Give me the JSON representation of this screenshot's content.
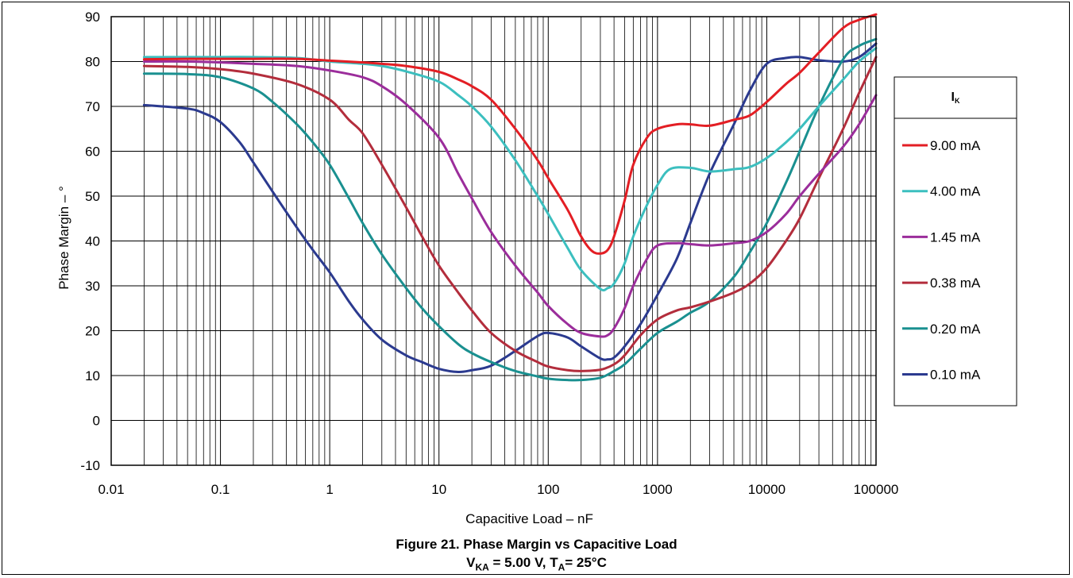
{
  "figure": {
    "title": "Figure 21. Phase Margin vs Capacitive Load",
    "subtitle": {
      "v_symbol": "V",
      "v_sub": "KA",
      "v_rest": " = 5.00 V, T",
      "t_sub": "A",
      "t_rest": "= 25°C"
    }
  },
  "chart_data": {
    "type": "line",
    "xlabel": "Capacitive Load – nF",
    "ylabel": "Phase Margin – °",
    "xscale": "log",
    "xlim": [
      0.01,
      100000
    ],
    "ylim": [
      -10,
      90
    ],
    "x_tick_labels": [
      "0.01",
      "0.1",
      "1",
      "10",
      "100",
      "1000",
      "10000",
      "100000"
    ],
    "x_tick_values": [
      0.01,
      0.1,
      1,
      10,
      100,
      1000,
      10000,
      100000
    ],
    "y_ticks": [
      -10,
      0,
      10,
      20,
      30,
      40,
      50,
      60,
      70,
      80,
      90
    ],
    "grid": true,
    "legend": {
      "title": "I",
      "title_sub": "K",
      "placement": "right"
    },
    "series": [
      {
        "name": "9.00 mA",
        "color": "#e31e24",
        "points": [
          [
            0.02,
            80.5
          ],
          [
            0.05,
            80.6
          ],
          [
            0.1,
            80.6
          ],
          [
            0.2,
            80.6
          ],
          [
            0.5,
            80.6
          ],
          [
            1,
            80.2
          ],
          [
            2,
            79.8
          ],
          [
            3,
            79.5
          ],
          [
            5,
            79
          ],
          [
            10,
            77.7
          ],
          [
            15,
            76
          ],
          [
            20,
            74.5
          ],
          [
            30,
            71.5
          ],
          [
            50,
            65
          ],
          [
            80,
            58
          ],
          [
            100,
            54
          ],
          [
            150,
            47
          ],
          [
            200,
            41
          ],
          [
            250,
            37.8
          ],
          [
            300,
            37.2
          ],
          [
            350,
            38
          ],
          [
            400,
            41
          ],
          [
            500,
            49
          ],
          [
            600,
            57
          ],
          [
            800,
            63
          ],
          [
            1000,
            65
          ],
          [
            1500,
            66
          ],
          [
            2000,
            66
          ],
          [
            3000,
            65.7
          ],
          [
            5000,
            67
          ],
          [
            7000,
            68
          ],
          [
            10000,
            71
          ],
          [
            15000,
            75
          ],
          [
            20000,
            77.5
          ],
          [
            30000,
            82
          ],
          [
            50000,
            87.5
          ],
          [
            70000,
            89.3
          ],
          [
            100000,
            90.5
          ]
        ]
      },
      {
        "name": "4.00 mA",
        "color": "#3cbfbf",
        "points": [
          [
            0.02,
            81
          ],
          [
            0.05,
            81
          ],
          [
            0.1,
            81
          ],
          [
            0.2,
            81
          ],
          [
            0.5,
            80.8
          ],
          [
            1,
            80
          ],
          [
            2,
            79.5
          ],
          [
            3,
            79
          ],
          [
            5,
            77.8
          ],
          [
            10,
            75.5
          ],
          [
            15,
            72.5
          ],
          [
            20,
            70
          ],
          [
            30,
            65.5
          ],
          [
            50,
            58
          ],
          [
            80,
            50
          ],
          [
            100,
            46
          ],
          [
            150,
            38.5
          ],
          [
            200,
            33.5
          ],
          [
            300,
            29.3
          ],
          [
            350,
            29.5
          ],
          [
            400,
            30.5
          ],
          [
            500,
            35
          ],
          [
            600,
            41
          ],
          [
            800,
            48
          ],
          [
            1000,
            52.5
          ],
          [
            1300,
            56
          ],
          [
            2000,
            56.3
          ],
          [
            3000,
            55.5
          ],
          [
            5000,
            56
          ],
          [
            7000,
            56.5
          ],
          [
            10000,
            58.5
          ],
          [
            15000,
            62
          ],
          [
            20000,
            65
          ],
          [
            30000,
            70
          ],
          [
            50000,
            76
          ],
          [
            70000,
            80
          ],
          [
            100000,
            83
          ]
        ]
      },
      {
        "name": "1.45 mA",
        "color": "#9b2d9b",
        "points": [
          [
            0.02,
            80
          ],
          [
            0.05,
            80
          ],
          [
            0.1,
            79.8
          ],
          [
            0.2,
            79.5
          ],
          [
            0.5,
            79
          ],
          [
            1,
            78
          ],
          [
            2,
            76.5
          ],
          [
            3,
            74.5
          ],
          [
            5,
            70.5
          ],
          [
            10,
            63
          ],
          [
            15,
            55
          ],
          [
            20,
            49.5
          ],
          [
            30,
            42
          ],
          [
            50,
            34.5
          ],
          [
            80,
            28.5
          ],
          [
            100,
            25.5
          ],
          [
            150,
            21.5
          ],
          [
            200,
            19.5
          ],
          [
            300,
            18.7
          ],
          [
            350,
            19
          ],
          [
            400,
            20.5
          ],
          [
            500,
            25
          ],
          [
            600,
            30
          ],
          [
            800,
            36
          ],
          [
            1000,
            39
          ],
          [
            1500,
            39.5
          ],
          [
            2000,
            39.3
          ],
          [
            3000,
            39
          ],
          [
            5000,
            39.5
          ],
          [
            7000,
            40
          ],
          [
            10000,
            42
          ],
          [
            15000,
            46
          ],
          [
            20000,
            50
          ],
          [
            30000,
            55
          ],
          [
            50000,
            61
          ],
          [
            70000,
            66
          ],
          [
            100000,
            72.5
          ]
        ]
      },
      {
        "name": "0.38 mA",
        "color": "#b32d3c",
        "points": [
          [
            0.02,
            79
          ],
          [
            0.05,
            78.8
          ],
          [
            0.1,
            78.3
          ],
          [
            0.2,
            77.3
          ],
          [
            0.5,
            75
          ],
          [
            1,
            71.5
          ],
          [
            1.5,
            67
          ],
          [
            2,
            64
          ],
          [
            3,
            57
          ],
          [
            5,
            47.5
          ],
          [
            7,
            41
          ],
          [
            10,
            34.5
          ],
          [
            15,
            28.5
          ],
          [
            20,
            24.5
          ],
          [
            30,
            19.5
          ],
          [
            50,
            15.5
          ],
          [
            80,
            13
          ],
          [
            100,
            12
          ],
          [
            150,
            11.2
          ],
          [
            200,
            11
          ],
          [
            300,
            11.3
          ],
          [
            400,
            12.5
          ],
          [
            500,
            14.5
          ],
          [
            700,
            19
          ],
          [
            1000,
            22.5
          ],
          [
            1500,
            24.5
          ],
          [
            2000,
            25.2
          ],
          [
            3000,
            26.5
          ],
          [
            5000,
            28.5
          ],
          [
            7000,
            30.5
          ],
          [
            10000,
            34
          ],
          [
            15000,
            40
          ],
          [
            20000,
            45
          ],
          [
            30000,
            54
          ],
          [
            50000,
            65
          ],
          [
            70000,
            73
          ],
          [
            100000,
            81
          ]
        ]
      },
      {
        "name": "0.20 mA",
        "color": "#1a9090",
        "points": [
          [
            0.02,
            77.3
          ],
          [
            0.05,
            77.2
          ],
          [
            0.1,
            76.5
          ],
          [
            0.2,
            74
          ],
          [
            0.3,
            71
          ],
          [
            0.5,
            66
          ],
          [
            0.7,
            62
          ],
          [
            1,
            57
          ],
          [
            1.5,
            49.5
          ],
          [
            2,
            44
          ],
          [
            3,
            37
          ],
          [
            5,
            29.5
          ],
          [
            7,
            25
          ],
          [
            10,
            21
          ],
          [
            15,
            17
          ],
          [
            20,
            15
          ],
          [
            30,
            13
          ],
          [
            50,
            11
          ],
          [
            80,
            9.8
          ],
          [
            100,
            9.3
          ],
          [
            150,
            9
          ],
          [
            200,
            9
          ],
          [
            300,
            9.5
          ],
          [
            400,
            11
          ],
          [
            500,
            12.5
          ],
          [
            700,
            16
          ],
          [
            1000,
            19.5
          ],
          [
            1500,
            22
          ],
          [
            2000,
            24
          ],
          [
            3000,
            26.5
          ],
          [
            5000,
            32
          ],
          [
            7000,
            37.5
          ],
          [
            10000,
            44
          ],
          [
            15000,
            53
          ],
          [
            20000,
            60
          ],
          [
            30000,
            70
          ],
          [
            50000,
            80.5
          ],
          [
            70000,
            83.5
          ],
          [
            100000,
            85
          ]
        ]
      },
      {
        "name": "0.10 mA",
        "color": "#2b3a8f",
        "points": [
          [
            0.02,
            70.3
          ],
          [
            0.05,
            69.5
          ],
          [
            0.07,
            68.5
          ],
          [
            0.1,
            66.5
          ],
          [
            0.15,
            62
          ],
          [
            0.2,
            57.5
          ],
          [
            0.3,
            51
          ],
          [
            0.5,
            43
          ],
          [
            0.7,
            38
          ],
          [
            1,
            33
          ],
          [
            1.5,
            26.5
          ],
          [
            2,
            22.5
          ],
          [
            3,
            18
          ],
          [
            5,
            14.5
          ],
          [
            7,
            13
          ],
          [
            10,
            11.5
          ],
          [
            15,
            10.8
          ],
          [
            20,
            11.2
          ],
          [
            30,
            12.2
          ],
          [
            50,
            15.5
          ],
          [
            80,
            18.8
          ],
          [
            100,
            19.5
          ],
          [
            150,
            18.5
          ],
          [
            200,
            16.5
          ],
          [
            300,
            13.8
          ],
          [
            350,
            13.6
          ],
          [
            400,
            14
          ],
          [
            500,
            16.5
          ],
          [
            700,
            21.5
          ],
          [
            1000,
            28
          ],
          [
            1500,
            36
          ],
          [
            2000,
            44
          ],
          [
            3000,
            55
          ],
          [
            5000,
            66
          ],
          [
            7000,
            73.5
          ],
          [
            10000,
            79.5
          ],
          [
            15000,
            80.8
          ],
          [
            20000,
            81
          ],
          [
            30000,
            80.3
          ],
          [
            50000,
            80
          ],
          [
            70000,
            81
          ],
          [
            100000,
            84
          ]
        ]
      }
    ]
  }
}
